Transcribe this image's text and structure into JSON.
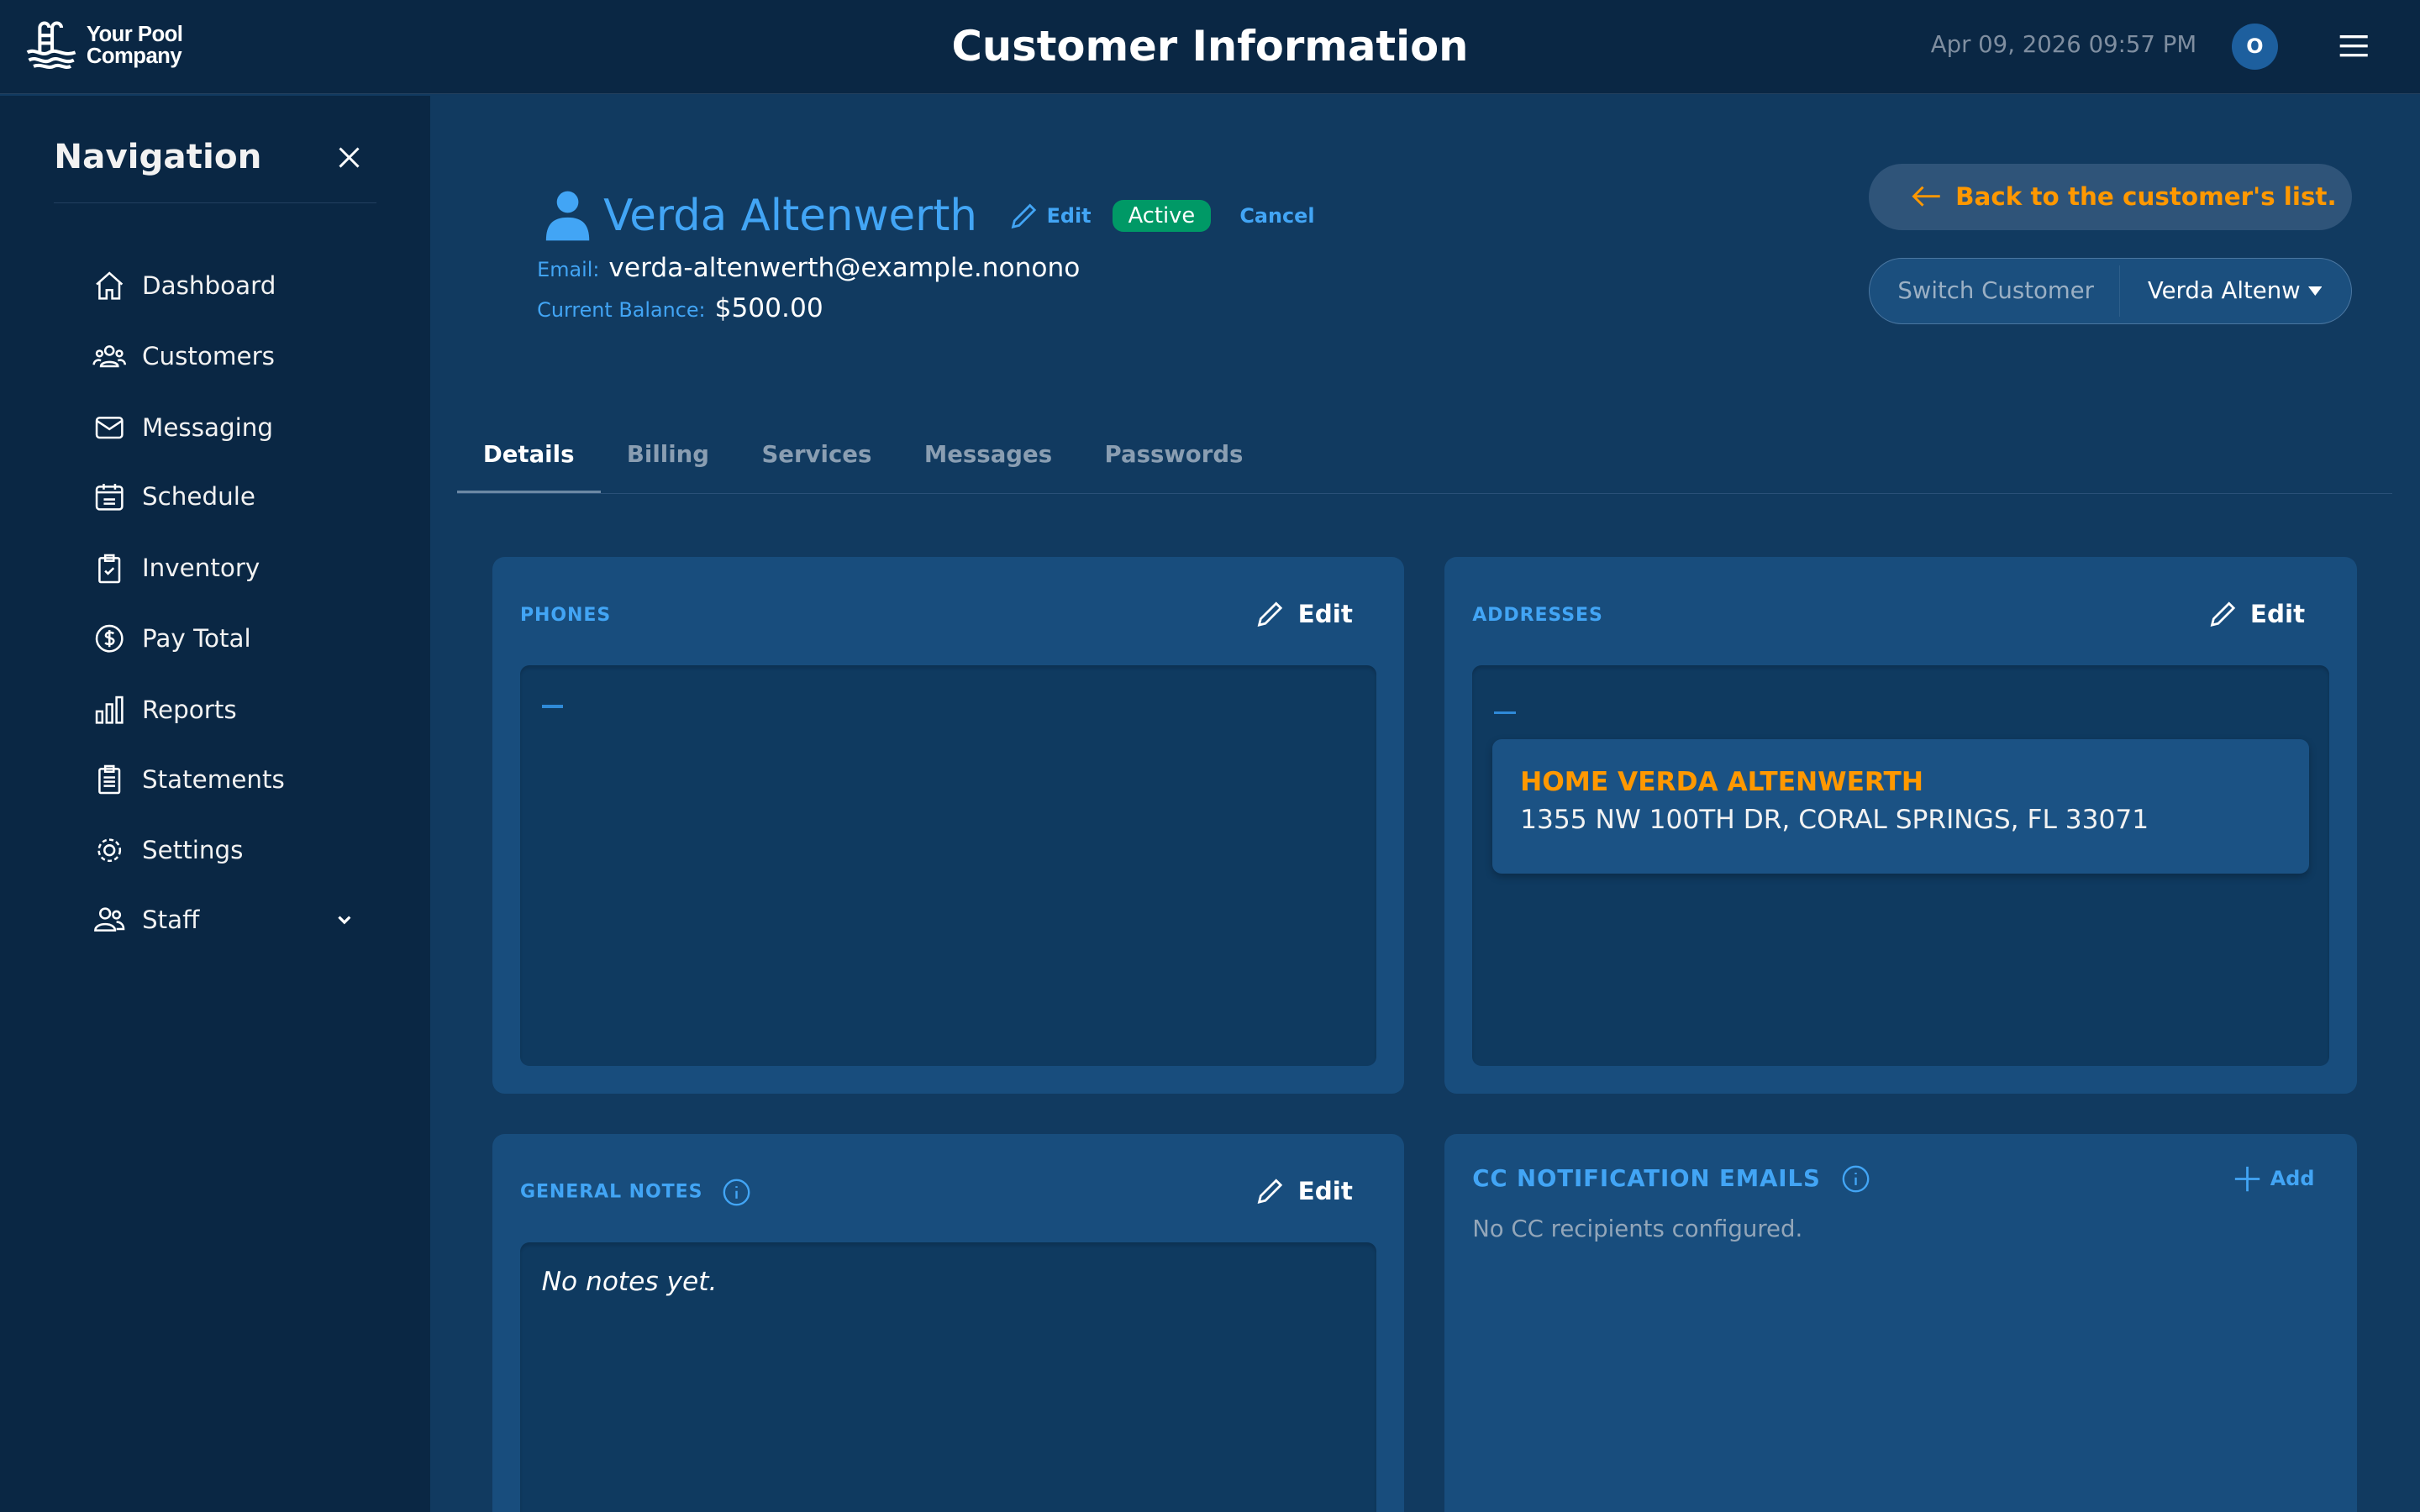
{
  "colors": {
    "accent": "#42a5f5",
    "orange": "#ff9800",
    "active_badge": "#009966",
    "header_bg": "#0a2744",
    "main_bg": "#113a60",
    "card_bg": "#184d7d"
  },
  "header": {
    "logo_line1": "Your Pool",
    "logo_line2": "Company",
    "title": "Customer Information",
    "datetime": "Apr 09, 2026 09:57 PM",
    "avatar_initial": "O"
  },
  "sidebar": {
    "title": "Navigation",
    "items": [
      {
        "label": "Dashboard",
        "icon": "home-icon"
      },
      {
        "label": "Customers",
        "icon": "users-icon"
      },
      {
        "label": "Messaging",
        "icon": "mail-icon"
      },
      {
        "label": "Schedule",
        "icon": "calendar-icon"
      },
      {
        "label": "Inventory",
        "icon": "clipboard-check-icon"
      },
      {
        "label": "Pay Total",
        "icon": "dollar-icon"
      },
      {
        "label": "Reports",
        "icon": "bar-chart-icon"
      },
      {
        "label": "Statements",
        "icon": "document-icon"
      },
      {
        "label": "Settings",
        "icon": "gear-icon"
      },
      {
        "label": "Staff",
        "icon": "staff-icon"
      }
    ]
  },
  "customer": {
    "name": "Verda Altenwerth",
    "edit_label": "Edit",
    "status": "Active",
    "cancel_label": "Cancel",
    "email_label": "Email:",
    "email": "verda-altenwerth@example.nonono",
    "balance_label": "Current Balance:",
    "balance": "$500.00"
  },
  "actions": {
    "back_label": "Back to the customer's list.",
    "switch_label": "Switch Customer",
    "switch_value": "Verda Altenw"
  },
  "tabs": [
    {
      "label": "Details",
      "active": true
    },
    {
      "label": "Billing"
    },
    {
      "label": "Services"
    },
    {
      "label": "Messages"
    },
    {
      "label": "Passwords"
    }
  ],
  "cards": {
    "phones": {
      "title": "PHONES",
      "edit_label": "Edit"
    },
    "addresses": {
      "title": "ADDRESSES",
      "edit_label": "Edit",
      "items": [
        {
          "name": "HOME VERDA ALTENWERTH",
          "line": "1355 NW 100TH DR, CORAL SPRINGS, FL 33071"
        }
      ]
    },
    "notes": {
      "title": "GENERAL NOTES",
      "edit_label": "Edit",
      "text": "No notes yet."
    },
    "cc": {
      "title": "CC NOTIFICATION EMAILS",
      "add_label": "Add",
      "empty": "No CC recipients configured."
    }
  }
}
